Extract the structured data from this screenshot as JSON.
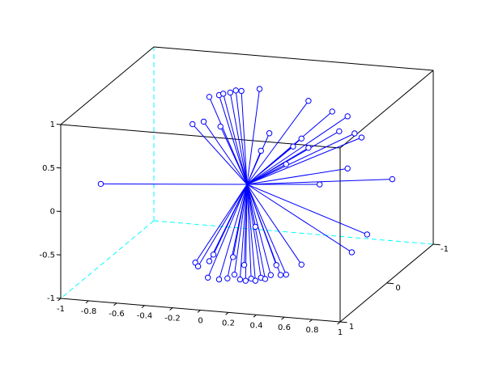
{
  "chart_data": {
    "type": "stem3d",
    "color": "#0000ff",
    "x": [
      -0.88,
      -0.27,
      -0.2,
      -0.17,
      -0.12,
      -0.08,
      -0.04,
      0.09,
      -0.39,
      -0.31,
      -0.19,
      0.44,
      0.61,
      0.72,
      0.66,
      0.77,
      0.82,
      0.16,
      0.39,
      0.33,
      0.44,
      0.1,
      0.28,
      0.72,
      1.04,
      0.52,
      0.86,
      0.75,
      0.39,
      0.06,
      -0.37,
      -0.35,
      -0.28,
      -0.24,
      -0.2,
      -0.14,
      -0.1,
      -0.09,
      -0.05,
      -0.02,
      -0.01,
      0.03,
      0.06,
      0.1,
      0.13,
      0.17,
      0.21,
      0.24,
      0.28,
      -0.27
    ],
    "y": [
      0.5,
      0,
      0,
      0,
      0,
      0,
      0,
      0,
      0,
      0,
      0,
      0,
      0,
      0,
      0,
      0,
      0,
      0,
      0,
      0,
      0,
      0,
      0,
      0,
      0,
      0,
      0,
      0,
      0,
      0,
      0,
      0,
      0,
      0,
      0,
      0,
      0,
      0,
      0,
      0,
      0,
      0,
      0,
      0,
      0,
      0,
      0,
      0,
      0,
      0
    ],
    "z": [
      0.11,
      0.97,
      1.0,
      1.02,
      1.04,
      1.07,
      1.07,
      1.11,
      0.64,
      0.68,
      0.64,
      1.02,
      0.92,
      0.88,
      0.7,
      0.69,
      0.65,
      0.61,
      0.58,
      0.48,
      0.48,
      0.4,
      0.27,
      0.28,
      0.2,
      0.07,
      -0.46,
      -0.68,
      -0.87,
      -0.48,
      -0.95,
      -0.99,
      -1.11,
      -0.84,
      -1.12,
      -1.1,
      -0.85,
      -1.05,
      -1.1,
      -0.93,
      -1.11,
      -1.08,
      -1.1,
      -1.06,
      -1.07,
      -1.02,
      -0.9,
      -1.01,
      -1.0,
      -0.92
    ],
    "xlim": [
      -1,
      1
    ],
    "ylim": [
      -1,
      1
    ],
    "zlim": [
      -1,
      1
    ],
    "xticks": [
      -1,
      -0.8,
      -0.6,
      -0.4,
      -0.2,
      0,
      0.2,
      0.4,
      0.6,
      0.8,
      1
    ],
    "yticks": [
      -1,
      0,
      1
    ],
    "zticks": [
      -1,
      -0.5,
      0,
      0.5,
      1
    ]
  }
}
